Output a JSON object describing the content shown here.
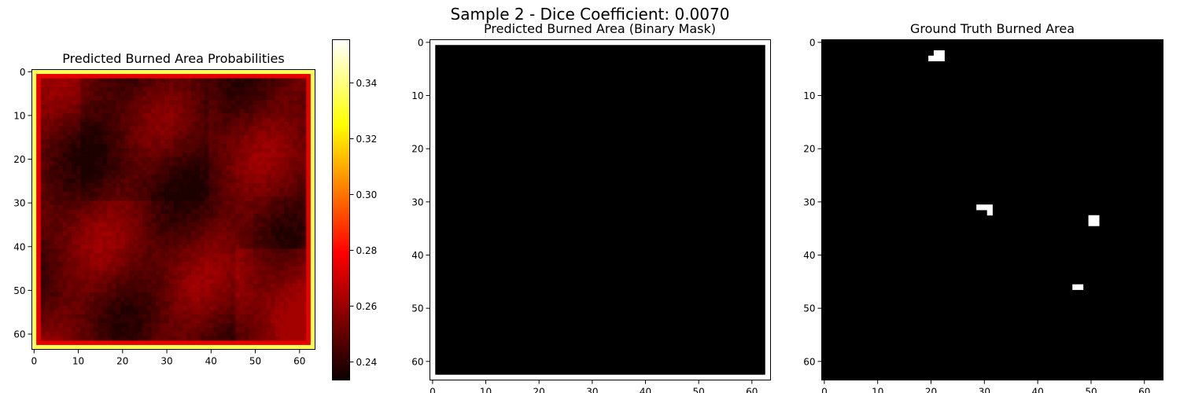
{
  "figure": {
    "suptitle": "Sample 2 - Dice Coefficient: 0.0070"
  },
  "chart_data": [
    {
      "type": "heatmap",
      "title": "Predicted Burned Area Probabilities",
      "colormap": "hot",
      "grid_size": 64,
      "x_ticks": [
        "0",
        "10",
        "20",
        "30",
        "40",
        "50",
        "60"
      ],
      "y_ticks": [
        "0",
        "10",
        "20",
        "30",
        "40",
        "50",
        "60"
      ],
      "xlim": [
        -0.5,
        63.5
      ],
      "ylim": [
        63.5,
        -0.5
      ],
      "colorbar": {
        "vmin": 0.2335,
        "vmax": 0.3555,
        "ticks": [
          "0.24",
          "0.26",
          "0.28",
          "0.30",
          "0.32",
          "0.34"
        ]
      },
      "values_summary": {
        "outer_border": 0.335,
        "inner_ring": 0.275,
        "interior_range": [
          0.237,
          0.262
        ]
      }
    },
    {
      "type": "heatmap",
      "title": "Predicted Burned Area (Binary Mask)",
      "colormap": "gray",
      "mask_value": 0,
      "data_extent": [
        0.5,
        62.5
      ],
      "x_ticks": [
        "0",
        "10",
        "20",
        "30",
        "40",
        "50",
        "60"
      ],
      "y_ticks": [
        "0",
        "10",
        "20",
        "30",
        "40",
        "50",
        "60"
      ],
      "xlim": [
        -0.5,
        63.5
      ],
      "ylim": [
        63.5,
        -0.5
      ]
    },
    {
      "type": "heatmap",
      "title": "Ground Truth Burned Area",
      "colormap": "gray",
      "grid_size": 64,
      "x_ticks": [
        "0",
        "10",
        "20",
        "30",
        "40",
        "50",
        "60"
      ],
      "y_ticks": [
        "0",
        "10",
        "20",
        "30",
        "40",
        "50",
        "60"
      ],
      "xlim": [
        -0.5,
        63.5
      ],
      "ylim": [
        63.5,
        -0.5
      ],
      "burned_pixels": [
        [
          21,
          2
        ],
        [
          22,
          2
        ],
        [
          20,
          3
        ],
        [
          21,
          3
        ],
        [
          22,
          3
        ],
        [
          29,
          31
        ],
        [
          30,
          31
        ],
        [
          31,
          31
        ],
        [
          31,
          32
        ],
        [
          50,
          33
        ],
        [
          51,
          33
        ],
        [
          50,
          34
        ],
        [
          51,
          34
        ],
        [
          47,
          46
        ],
        [
          48,
          46
        ]
      ]
    }
  ]
}
